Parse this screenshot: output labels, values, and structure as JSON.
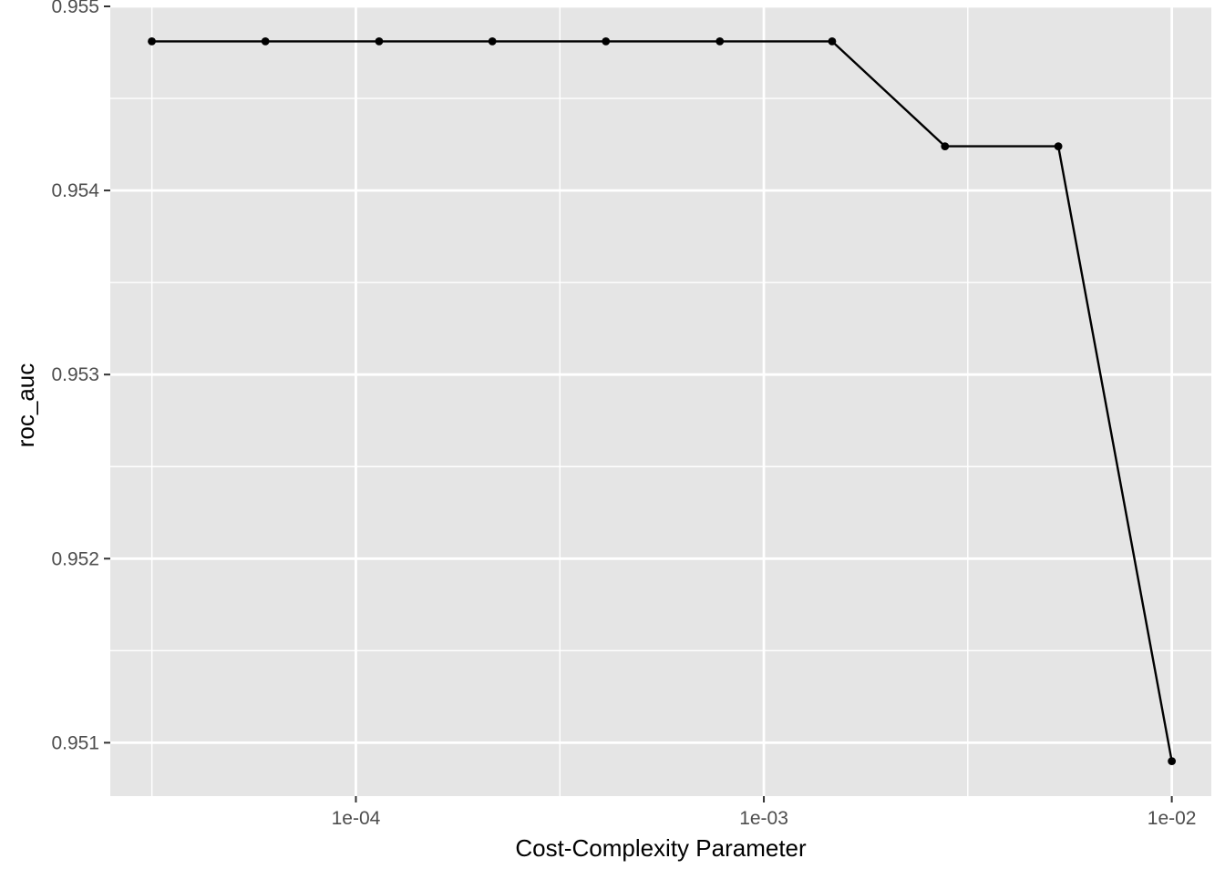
{
  "chart_data": {
    "type": "line",
    "title": "",
    "xlabel": "Cost-Complexity Parameter",
    "ylabel": "roc_auc",
    "x_scale": "log10",
    "xlim": [
      2.5e-05,
      0.0125
    ],
    "ylim": [
      0.95071,
      0.955
    ],
    "grid": true,
    "legend": "none",
    "colors": {
      "panel_background": "#e5e5e5",
      "grid": "#ffffff",
      "line": "#000000",
      "tick_text": "#4d4d4d",
      "tick_mark": "#333333"
    },
    "x_ticks": [
      {
        "value": 0.0001,
        "label": "1e-04"
      },
      {
        "value": 0.001,
        "label": "1e-03"
      },
      {
        "value": 0.01,
        "label": "1e-02"
      }
    ],
    "y_ticks": [
      {
        "value": 0.951,
        "label": "0.951"
      },
      {
        "value": 0.952,
        "label": "0.952"
      },
      {
        "value": 0.953,
        "label": "0.953"
      },
      {
        "value": 0.954,
        "label": "0.954"
      },
      {
        "value": 0.955,
        "label": "0.955"
      }
    ],
    "series": [
      {
        "x": [
          3.16e-05,
          6e-05,
          0.000114,
          0.000216,
          0.00041,
          0.00078,
          0.00147,
          0.00278,
          0.00527,
          0.01
        ],
        "y": [
          0.95481,
          0.95481,
          0.95481,
          0.95481,
          0.95481,
          0.95481,
          0.95481,
          0.95424,
          0.95424,
          0.9509
        ]
      }
    ]
  }
}
